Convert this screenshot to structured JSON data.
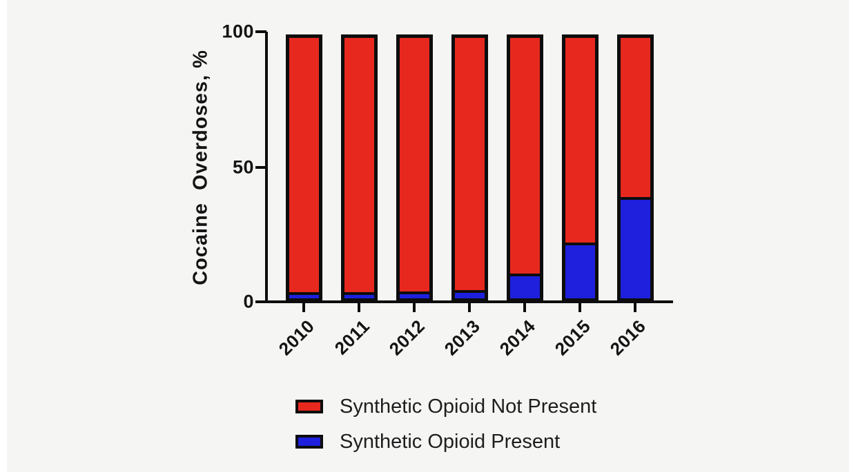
{
  "figure": {
    "background": "#f5f5f4",
    "edge_strip_color": "#ffffff",
    "axis_color": "#0d0d0d",
    "red": "#e7281e",
    "blue": "#1e20dd"
  },
  "chart_data": {
    "type": "bar",
    "stacked": true,
    "title": "",
    "xlabel": "",
    "ylabel": "Cocaine  Overdoses, %",
    "categories": [
      "2010",
      "2011",
      "2012",
      "2013",
      "2014",
      "2015",
      "2016"
    ],
    "series": [
      {
        "name": "Synthetic Opioid Not Present",
        "color": "#e7281e",
        "values": [
          96.3,
          96.3,
          96.2,
          95.6,
          89.4,
          77.9,
          60.8
        ]
      },
      {
        "name": "Synthetic Opioid Present",
        "color": "#1e20dd",
        "values": [
          3.7,
          3.7,
          3.8,
          4.4,
          10.6,
          22.1,
          39.2
        ]
      }
    ],
    "ylim": [
      0,
      100
    ],
    "yticks": [
      0,
      50,
      100
    ],
    "grid": false,
    "bar_outline": "#0d0d0d",
    "legend_position": "bottom"
  },
  "y_axis": {
    "label": "Cocaine  Overdoses, %",
    "tick_labels": [
      "0",
      "50",
      "100"
    ]
  },
  "legend": {
    "items": [
      {
        "label": "Synthetic Opioid Not Present",
        "color": "#e7281e"
      },
      {
        "label": "Synthetic Opioid Present",
        "color": "#1e20dd"
      }
    ]
  }
}
